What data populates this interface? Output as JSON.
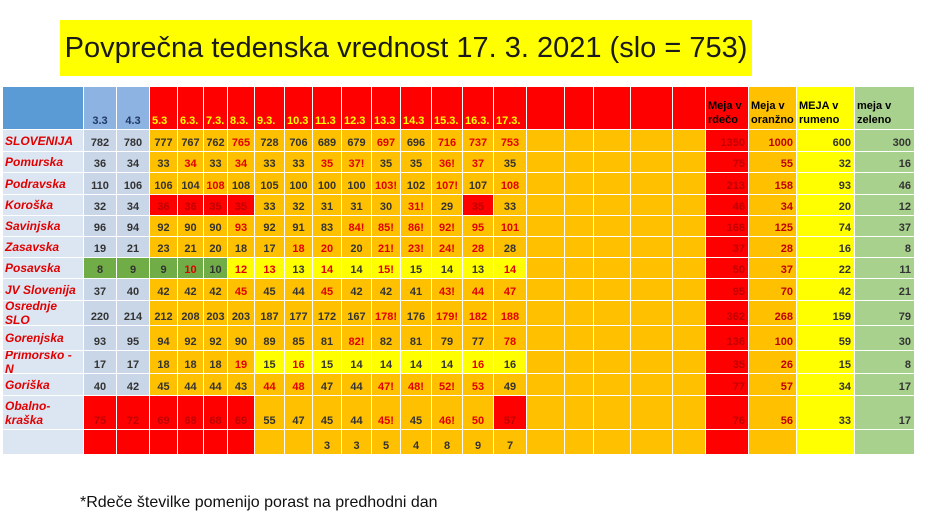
{
  "title": "Povprečna tedenska vrednost 17. 3. 2021 (slo = 753)",
  "footnote": "*Rdeče številke pomenijo porast na predhodni dan",
  "table": {
    "date_headers": [
      "3.3",
      "4.3",
      "5.3",
      "6.3.",
      "7.3.",
      "8.3.",
      "9.3.",
      "10.3",
      "11.3",
      "12.3",
      "13.3",
      "14.3",
      "15.3.",
      "16.3.",
      "17.3."
    ],
    "threshold_headers": [
      "Meja v rdečo",
      "Meja v oranžno",
      "MEJA v rumeno",
      "meja v zeleno"
    ],
    "palette": {
      "R": "#ff0000",
      "O": "#ffc000",
      "Y": "#ffff00",
      "G": "#70ad47",
      "L": "#c9d6e8"
    },
    "rows": [
      {
        "name": "SLOVENIJA",
        "values": [
          782,
          780,
          777,
          767,
          762,
          765,
          728,
          706,
          689,
          679,
          697,
          696,
          716,
          737,
          753
        ],
        "thresholds": [
          1350,
          1000,
          600,
          300
        ],
        "fills": "LLOOOOOOOOOOOOO"
      },
      {
        "name": "Pomurska",
        "values": [
          36,
          34,
          33,
          34,
          33,
          34,
          33,
          33,
          35,
          "37!",
          35,
          35,
          "36!",
          37,
          35
        ],
        "thresholds": [
          75,
          55,
          32,
          16
        ],
        "fills": "LLOOOOOOOOOOOOO"
      },
      {
        "name": "Podravska",
        "values": [
          110,
          106,
          106,
          104,
          108,
          108,
          105,
          100,
          100,
          100,
          "103!",
          102,
          "107!",
          107,
          108
        ],
        "thresholds": [
          213,
          158,
          93,
          46
        ],
        "fills": "LLOOOOOOOOOOOOO"
      },
      {
        "name": "Koroška",
        "values": [
          32,
          34,
          36,
          36,
          35,
          35,
          33,
          32,
          31,
          31,
          30,
          "31!",
          29,
          35,
          33
        ],
        "thresholds": [
          46,
          34,
          20,
          12
        ],
        "fills": "LLRRRROOOOOOORO"
      },
      {
        "name": "Savinjska",
        "values": [
          96,
          94,
          92,
          90,
          90,
          93,
          92,
          91,
          83,
          "84!",
          "85!",
          "86!",
          "92!",
          95,
          101
        ],
        "thresholds": [
          168,
          125,
          74,
          37
        ],
        "fills": "LLOOOOOOOOOOOOO"
      },
      {
        "name": "Zasavska",
        "values": [
          19,
          21,
          23,
          21,
          20,
          18,
          17,
          18,
          20,
          20,
          "21!",
          "23!",
          "24!",
          28,
          28
        ],
        "thresholds": [
          37,
          28,
          16,
          8
        ],
        "fills": "LLOOOOOOOOOOOOO"
      },
      {
        "name": "Posavska",
        "values": [
          8,
          9,
          9,
          10,
          10,
          12,
          13,
          13,
          14,
          14,
          "15!",
          15,
          14,
          13,
          14
        ],
        "thresholds": [
          50,
          37,
          22,
          11
        ],
        "fills": "GGGGGYYYYYYYYYY"
      },
      {
        "name": "JV Slovenija",
        "values": [
          37,
          40,
          42,
          42,
          42,
          45,
          45,
          44,
          45,
          42,
          42,
          41,
          "43!",
          44,
          47
        ],
        "thresholds": [
          95,
          70,
          42,
          21
        ],
        "fills": "LLOOOOOOOOOOOOO"
      },
      {
        "name": "Osrednje SLO",
        "values": [
          220,
          214,
          212,
          208,
          203,
          203,
          187,
          177,
          172,
          167,
          "178!",
          176,
          "179!",
          182,
          188
        ],
        "thresholds": [
          362,
          268,
          159,
          79
        ],
        "fills": "LLOOOOOOOOOOOOO"
      },
      {
        "name": "Gorenjska",
        "values": [
          93,
          95,
          94,
          92,
          92,
          90,
          89,
          85,
          81,
          "82!",
          82,
          81,
          79,
          77,
          78
        ],
        "thresholds": [
          136,
          100,
          59,
          30
        ],
        "fills": "LLOOOOOOOOOOOOO"
      },
      {
        "name": "Primorsko - N",
        "values": [
          17,
          17,
          18,
          18,
          18,
          19,
          15,
          16,
          15,
          14,
          14,
          14,
          14,
          16,
          16
        ],
        "thresholds": [
          35,
          26,
          15,
          8
        ],
        "fills": "LLOOOOYYYYYYYYY"
      },
      {
        "name": "Goriška",
        "values": [
          40,
          42,
          45,
          44,
          44,
          43,
          44,
          48,
          47,
          44,
          "47!",
          "48!",
          "52!",
          53,
          49
        ],
        "thresholds": [
          77,
          57,
          34,
          17
        ],
        "fills": "LLOOOOOOOOOOOOO"
      },
      {
        "name": "Obalno-kraška",
        "values": [
          75,
          72,
          69,
          68,
          68,
          69,
          55,
          47,
          45,
          44,
          "45!",
          45,
          "46!",
          50,
          57
        ],
        "thresholds": [
          76,
          56,
          33,
          17
        ],
        "fills": "RRRRRROOOOOOOOR"
      }
    ],
    "bottom_row": [
      null,
      null,
      null,
      null,
      null,
      null,
      null,
      null,
      3,
      3,
      5,
      4,
      8,
      9,
      7
    ],
    "bottom_fills": "RRRRRROOOOOOOOO"
  }
}
